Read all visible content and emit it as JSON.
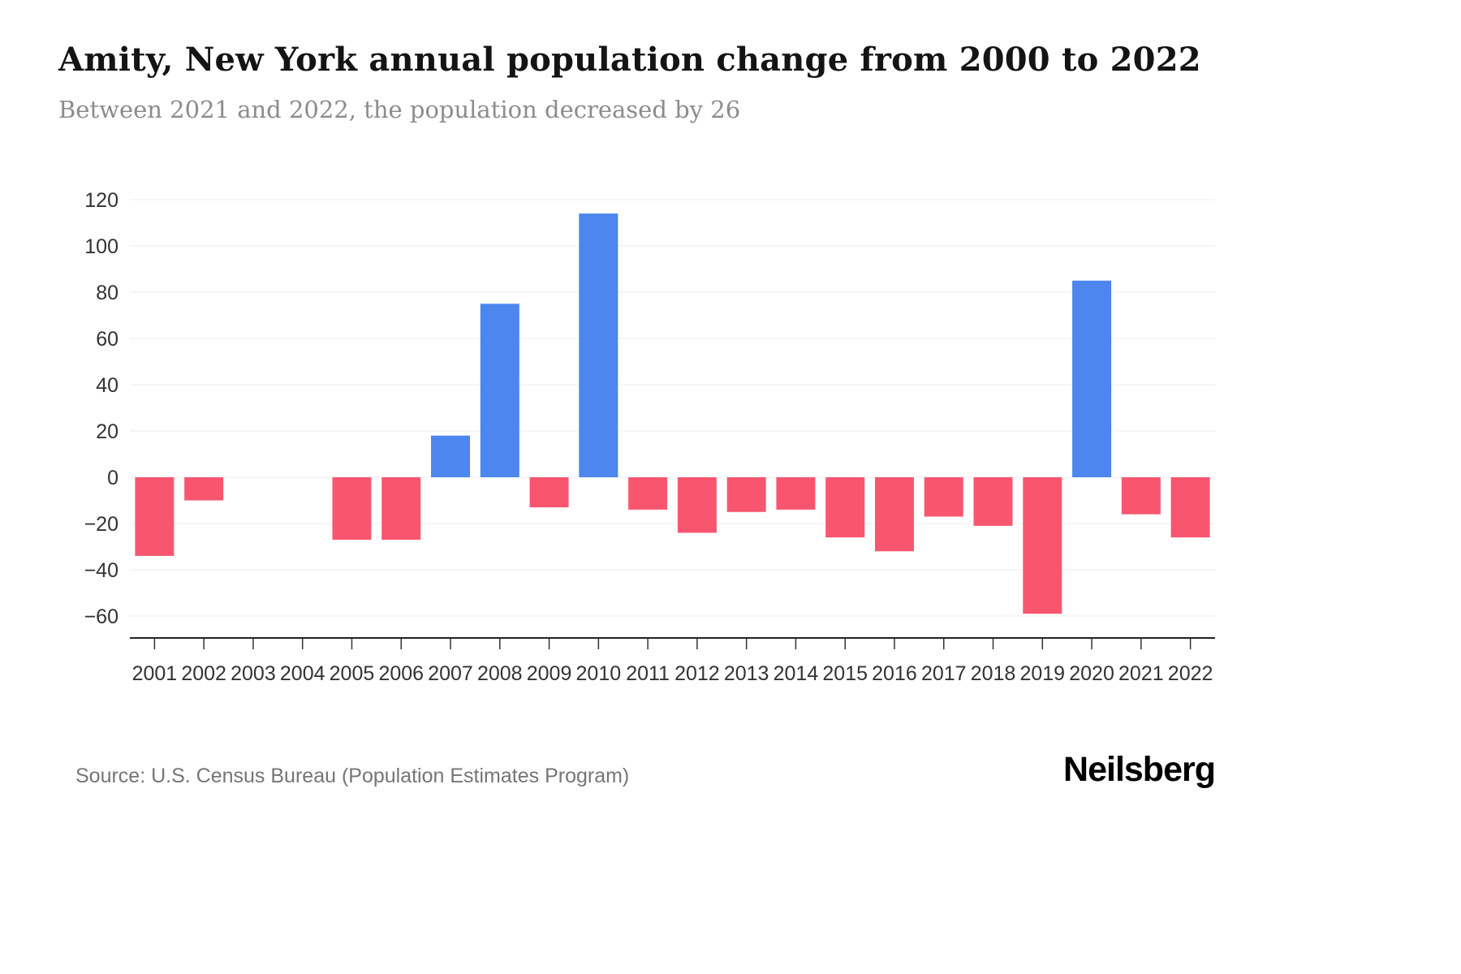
{
  "chart_data": {
    "type": "bar",
    "title": "Amity, New York annual population change from 2000 to 2022",
    "subtitle": "Between 2021 and 2022, the population decreased by 26",
    "categories": [
      "2001",
      "2002",
      "2003",
      "2004",
      "2005",
      "2006",
      "2007",
      "2008",
      "2009",
      "2010",
      "2011",
      "2012",
      "2013",
      "2014",
      "2015",
      "2016",
      "2017",
      "2018",
      "2019",
      "2020",
      "2021",
      "2022"
    ],
    "values": [
      -34,
      -10,
      0,
      0,
      -27,
      -27,
      18,
      75,
      -13,
      114,
      -14,
      -24,
      -15,
      -14,
      -26,
      -32,
      -17,
      -21,
      -59,
      85,
      -16,
      -26
    ],
    "xlabel": "",
    "ylabel": "",
    "ylim": [
      -60,
      120
    ],
    "yticks": [
      -60,
      -40,
      -20,
      0,
      20,
      40,
      60,
      80,
      100,
      120
    ],
    "grid": true,
    "legend_position": "none",
    "colors": {
      "positive": "#4c86ee",
      "negative": "#f8566f",
      "gridline": "#ececec",
      "axis": "#222222",
      "tick_label": "#333333"
    }
  },
  "footer": {
    "source": "Source: U.S. Census Bureau (Population Estimates Program)",
    "brand": "Neilsberg"
  }
}
